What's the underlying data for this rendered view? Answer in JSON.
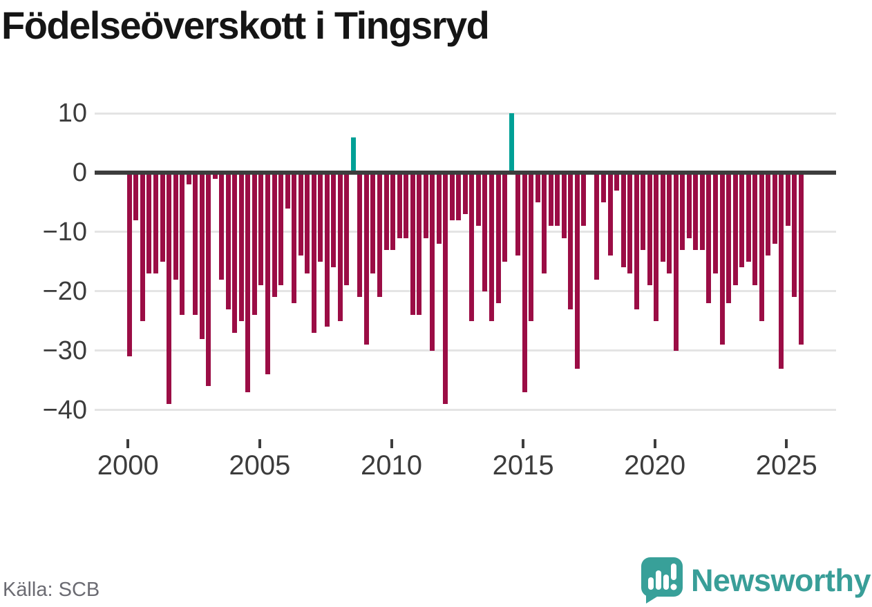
{
  "title": "Födelseöverskott i Tingsryd",
  "source": "Källa: SCB",
  "branding": {
    "name": "Newsworthy",
    "logo_icon": "speech-bubble-with-bar-chart-and-exclamation",
    "logo_color": "#38a099"
  },
  "chart_data": {
    "type": "bar",
    "title": "Födelseöverskott i Tingsryd",
    "x_unit": "quarter",
    "x_range": [
      "2000 Q1",
      "2025 Q3"
    ],
    "x_tick_years": [
      2000,
      2005,
      2010,
      2015,
      2020,
      2025
    ],
    "y_ticks": [
      10,
      0,
      -10,
      -20,
      -30,
      -40
    ],
    "ylim": [
      -44,
      13
    ],
    "grid": "horizontal",
    "legend": "none",
    "negative_color": "#9b0d45",
    "positive_color": "#00a096",
    "zero_line_color": "#3d3d3d",
    "grid_color": "#e4e4e4",
    "data_by_year": [
      {
        "year": 2000,
        "quarterly_values": [
          -31,
          -8,
          -25,
          -17
        ]
      },
      {
        "year": 2001,
        "quarterly_values": [
          -17,
          -15,
          -39,
          -18
        ]
      },
      {
        "year": 2002,
        "quarterly_values": [
          -24,
          -2,
          -24,
          -28
        ]
      },
      {
        "year": 2003,
        "quarterly_values": [
          -36,
          -1,
          -18,
          -23
        ]
      },
      {
        "year": 2004,
        "quarterly_values": [
          -27,
          -25,
          -37,
          -24
        ]
      },
      {
        "year": 2005,
        "quarterly_values": [
          -19,
          -34,
          -21,
          -19
        ]
      },
      {
        "year": 2006,
        "quarterly_values": [
          -6,
          -22,
          -14,
          -17
        ]
      },
      {
        "year": 2007,
        "quarterly_values": [
          -27,
          -15,
          -26,
          -16
        ]
      },
      {
        "year": 2008,
        "quarterly_values": [
          -25,
          -19,
          6,
          -21
        ]
      },
      {
        "year": 2009,
        "quarterly_values": [
          -29,
          -17,
          -21,
          -13
        ]
      },
      {
        "year": 2010,
        "quarterly_values": [
          -13,
          -11,
          -11,
          -24
        ]
      },
      {
        "year": 2011,
        "quarterly_values": [
          -24,
          -11,
          -30,
          -12
        ]
      },
      {
        "year": 2012,
        "quarterly_values": [
          -39,
          -8,
          -8,
          -7
        ]
      },
      {
        "year": 2013,
        "quarterly_values": [
          -25,
          -9,
          -20,
          -25
        ]
      },
      {
        "year": 2014,
        "quarterly_values": [
          -22,
          -15,
          10,
          -14
        ]
      },
      {
        "year": 2015,
        "quarterly_values": [
          -37,
          -25,
          -5,
          -17
        ]
      },
      {
        "year": 2016,
        "quarterly_values": [
          -9,
          -9,
          -11,
          -23
        ]
      },
      {
        "year": 2017,
        "quarterly_values": [
          -33,
          -9,
          0,
          -18
        ]
      },
      {
        "year": 2018,
        "quarterly_values": [
          -5,
          -14,
          -3,
          -16
        ]
      },
      {
        "year": 2019,
        "quarterly_values": [
          -17,
          -23,
          -13,
          -19
        ]
      },
      {
        "year": 2020,
        "quarterly_values": [
          -25,
          -15,
          -17,
          -30
        ]
      },
      {
        "year": 2021,
        "quarterly_values": [
          -13,
          -11,
          -13,
          -13
        ]
      },
      {
        "year": 2022,
        "quarterly_values": [
          -22,
          -17,
          -29,
          -22
        ]
      },
      {
        "year": 2023,
        "quarterly_values": [
          -19,
          -16,
          -15,
          -19
        ]
      },
      {
        "year": 2024,
        "quarterly_values": [
          -25,
          -14,
          -12,
          -33
        ]
      },
      {
        "year": 2025,
        "quarterly_values": [
          -9,
          -21,
          -29
        ]
      }
    ]
  }
}
